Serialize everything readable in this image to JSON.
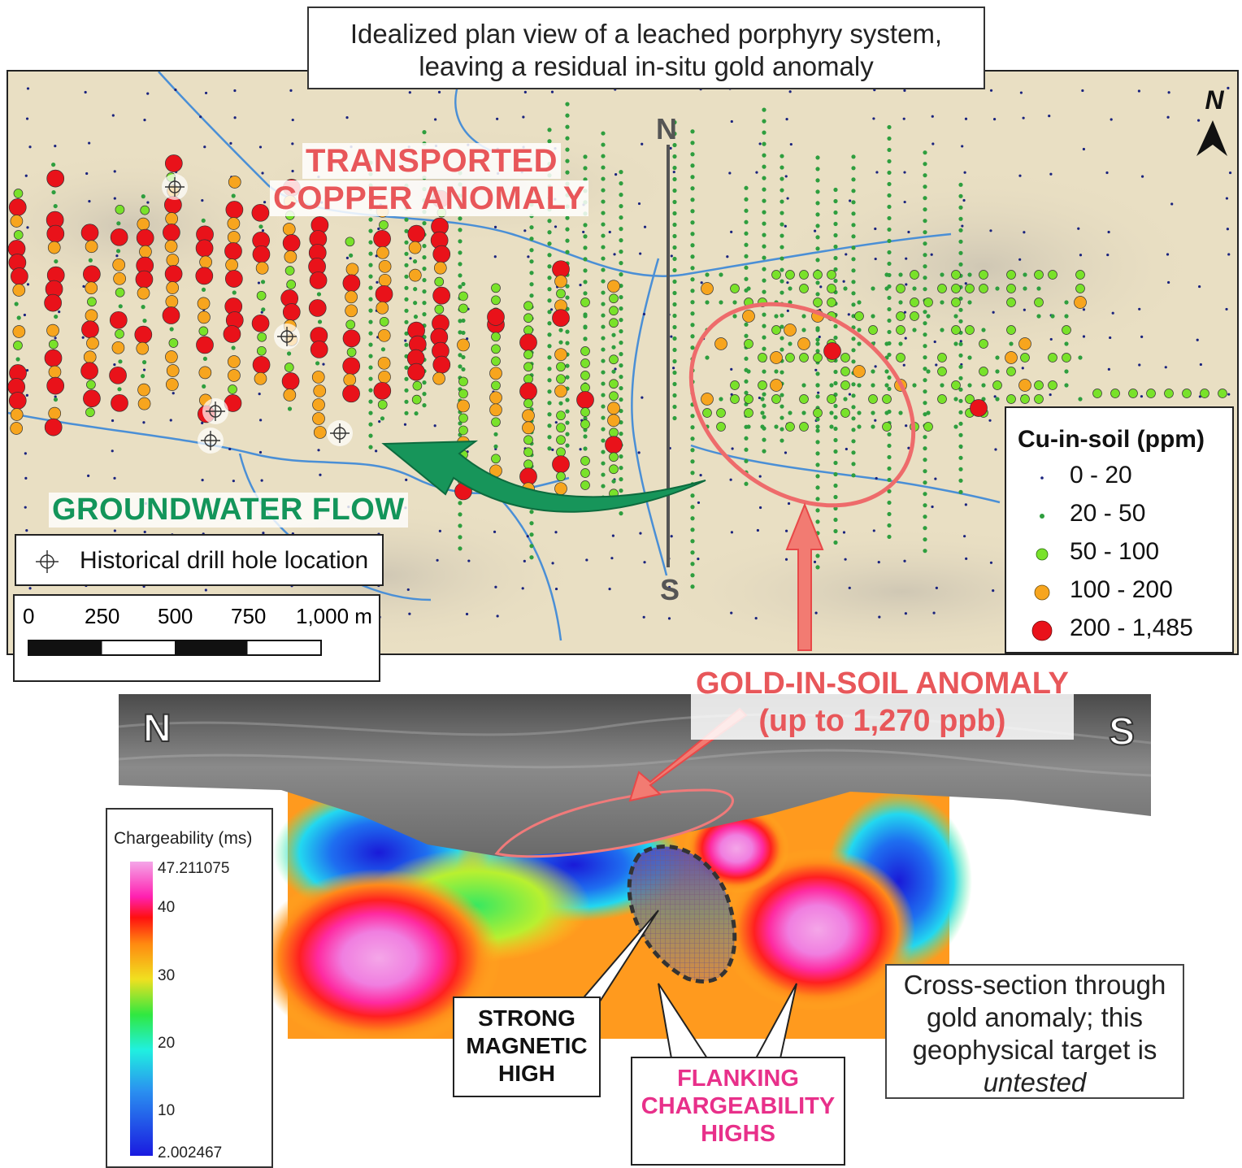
{
  "title": {
    "line1": "Idealized plan view of a leached porphyry system,",
    "line2": "leaving a residual in-situ gold anomaly"
  },
  "map": {
    "copper_label_line1": "TRANSPORTED",
    "copper_label_line2": "COPPER ANOMALY",
    "groundwater_label": "GROUNDWATER FLOW",
    "north_marker": "N",
    "south_marker": "S",
    "north_arrow_label": "N",
    "drill_legend_label": "Historical drill hole location",
    "scale_ticks": [
      "0",
      "250",
      "500",
      "750",
      "1,000 m"
    ],
    "colors": {
      "class_0_20": "#1a237e",
      "class_20_50": "#2e9e3e",
      "class_50_100": "#79e22a",
      "class_100_200": "#f7a51e",
      "class_200_1485": "#e9121a",
      "ellipse": "#ee6b6b",
      "stream": "#4a8fd6",
      "groundwater_arrow": "#17955a"
    }
  },
  "cu_legend": {
    "title": "Cu-in-soil (ppm)",
    "classes": [
      "0 - 20",
      "20 - 50",
      "50 - 100",
      "100 - 200",
      "200 - 1,485"
    ]
  },
  "gold_label": {
    "line1": "GOLD-IN-SOIL ANOMALY",
    "line2": "(up to 1,270 ppb)"
  },
  "section": {
    "north_label": "N",
    "south_label": "S"
  },
  "chargeability_legend": {
    "title": "Chargeability (ms)",
    "max": "47.211075",
    "tick_40": "40",
    "tick_30": "30",
    "tick_20": "20",
    "tick_10": "10",
    "min": "2.002467"
  },
  "callouts": {
    "magnetic": [
      "STRONG",
      "MAGNETIC",
      "HIGH"
    ],
    "chargeability": [
      "FLANKING",
      "CHARGEABILITY",
      "HIGHS"
    ],
    "cross_section": [
      "Cross-section through",
      "gold anomaly; this",
      "geophysical target is",
      "untested"
    ]
  }
}
